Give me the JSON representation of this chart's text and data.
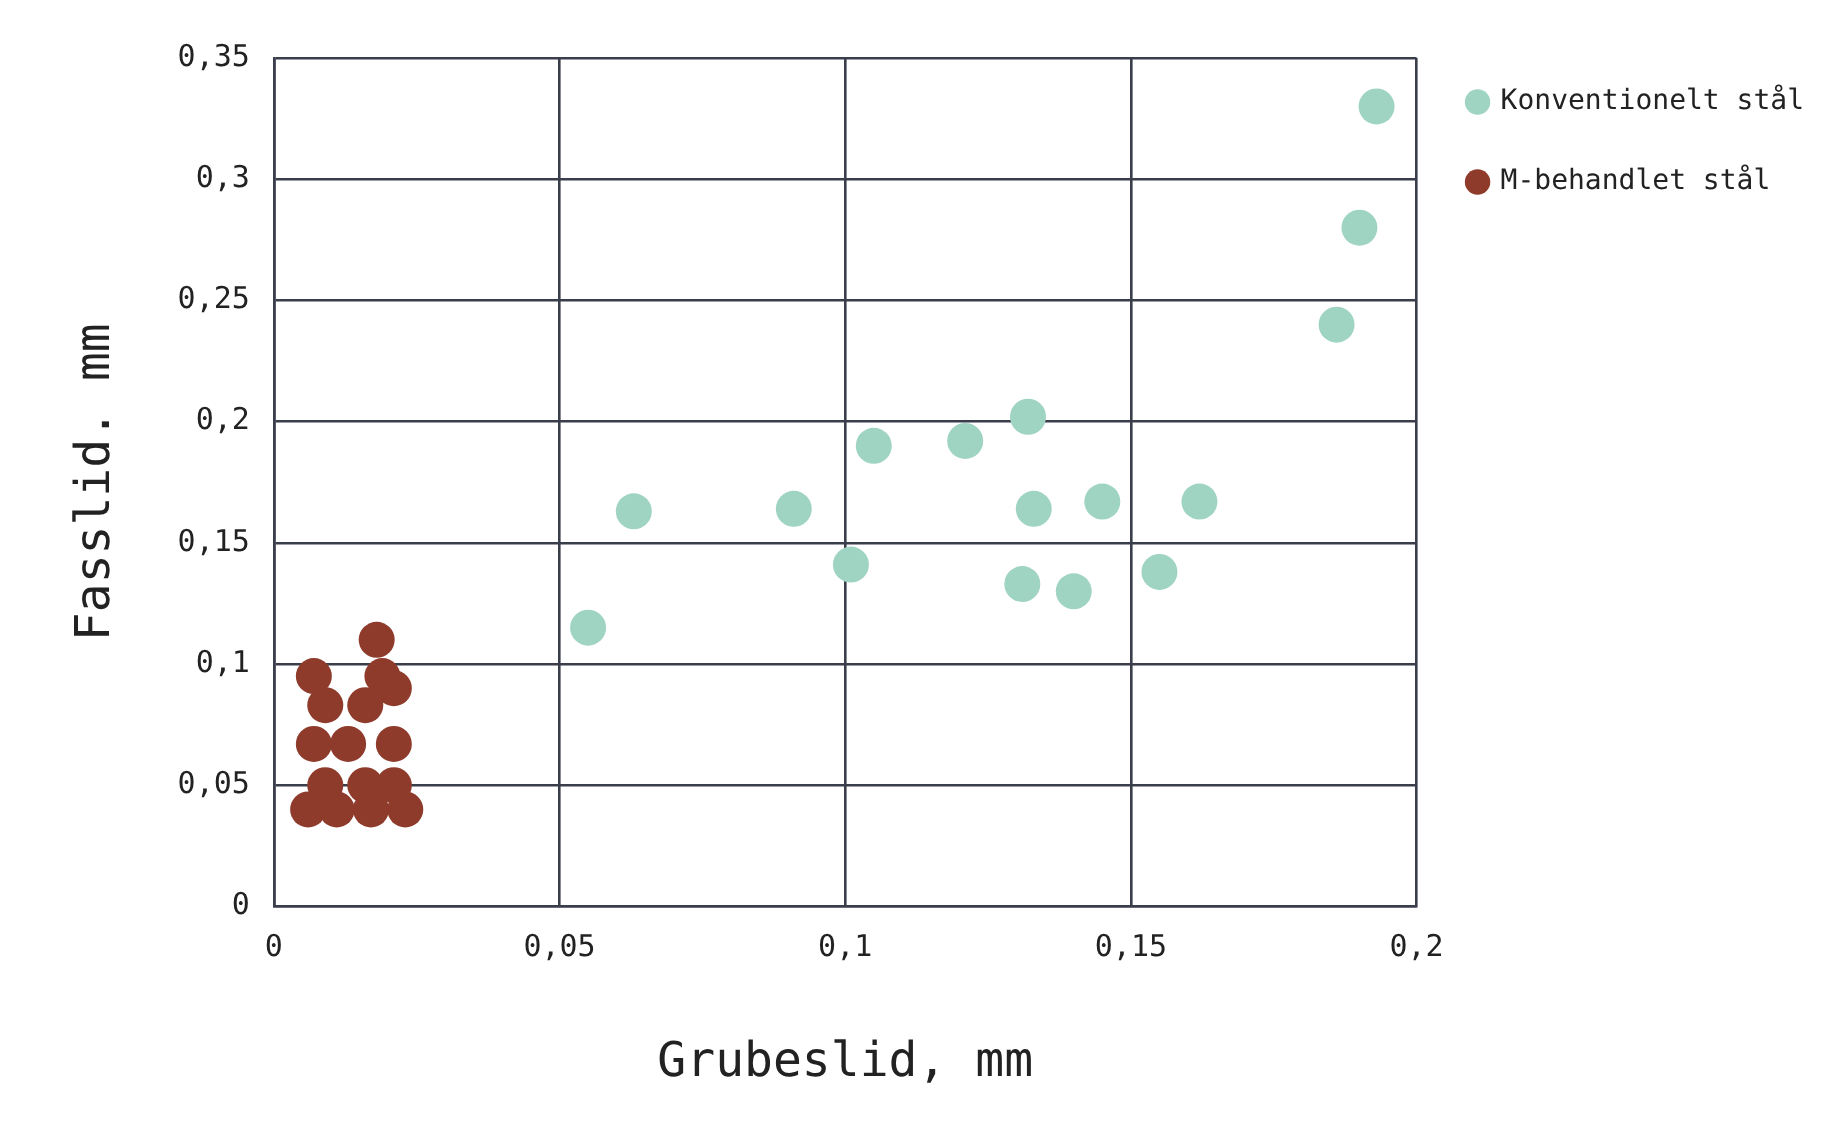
{
  "chart_data": {
    "type": "scatter",
    "xlabel": "Grubeslid, mm",
    "ylabel": "Fasslid. mm",
    "xlim": [
      0,
      0.2
    ],
    "ylim": [
      0,
      0.35
    ],
    "xticks": [
      {
        "value": 0,
        "label": "0"
      },
      {
        "value": 0.05,
        "label": "0,05"
      },
      {
        "value": 0.1,
        "label": "0,1"
      },
      {
        "value": 0.15,
        "label": "0,15"
      },
      {
        "value": 0.2,
        "label": "0,2"
      }
    ],
    "yticks": [
      {
        "value": 0,
        "label": "0"
      },
      {
        "value": 0.05,
        "label": "0,05"
      },
      {
        "value": 0.1,
        "label": "0,1"
      },
      {
        "value": 0.15,
        "label": "0,15"
      },
      {
        "value": 0.2,
        "label": "0,2"
      },
      {
        "value": 0.25,
        "label": "0,25"
      },
      {
        "value": 0.3,
        "label": "0,3"
      },
      {
        "value": 0.35,
        "label": "0,35"
      }
    ],
    "grid": true,
    "legend": "top right",
    "marker": "circle",
    "series": [
      {
        "name": "Konventionelt stål",
        "color": "#a0d4c2",
        "x": [
          0.055,
          0.063,
          0.091,
          0.101,
          0.105,
          0.121,
          0.132,
          0.133,
          0.131,
          0.14,
          0.145,
          0.155,
          0.162,
          0.186,
          0.19,
          0.193
        ],
        "values": [
          0.115,
          0.163,
          0.164,
          0.141,
          0.19,
          0.192,
          0.202,
          0.164,
          0.133,
          0.13,
          0.167,
          0.138,
          0.167,
          0.24,
          0.28,
          0.33
        ]
      },
      {
        "name": "M-behandlet stål",
        "color": "#8e3b2c",
        "x": [
          0.018,
          0.007,
          0.019,
          0.021,
          0.009,
          0.016,
          0.007,
          0.013,
          0.021,
          0.009,
          0.016,
          0.021,
          0.006,
          0.011,
          0.017,
          0.023
        ],
        "values": [
          0.11,
          0.095,
          0.095,
          0.09,
          0.083,
          0.083,
          0.067,
          0.067,
          0.067,
          0.05,
          0.05,
          0.05,
          0.04,
          0.04,
          0.04,
          0.04
        ]
      }
    ]
  }
}
